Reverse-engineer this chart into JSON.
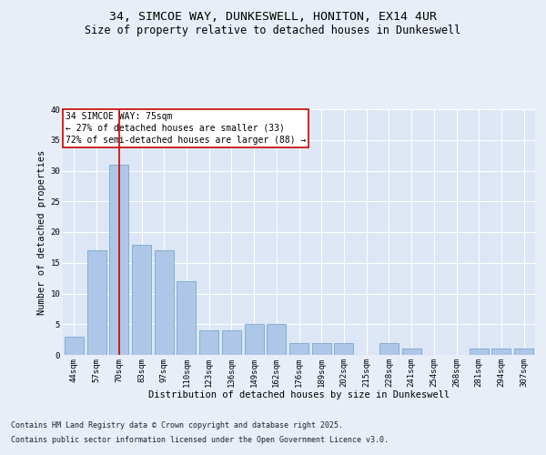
{
  "title_line1": "34, SIMCOE WAY, DUNKESWELL, HONITON, EX14 4UR",
  "title_line2": "Size of property relative to detached houses in Dunkeswell",
  "xlabel": "Distribution of detached houses by size in Dunkeswell",
  "ylabel": "Number of detached properties",
  "categories": [
    "44sqm",
    "57sqm",
    "70sqm",
    "83sqm",
    "97sqm",
    "110sqm",
    "123sqm",
    "136sqm",
    "149sqm",
    "162sqm",
    "176sqm",
    "189sqm",
    "202sqm",
    "215sqm",
    "228sqm",
    "241sqm",
    "254sqm",
    "268sqm",
    "281sqm",
    "294sqm",
    "307sqm"
  ],
  "values": [
    3,
    17,
    31,
    18,
    17,
    12,
    4,
    4,
    5,
    5,
    2,
    2,
    2,
    0,
    2,
    1,
    0,
    0,
    1,
    1,
    1
  ],
  "bar_color": "#aec6e8",
  "bar_edge_color": "#6a9fc8",
  "highlight_bar_index": 2,
  "highlight_line_color": "#cc0000",
  "background_color": "#e8eef8",
  "plot_bg_color": "#dce6f5",
  "ylim": [
    0,
    40
  ],
  "yticks": [
    0,
    5,
    10,
    15,
    20,
    25,
    30,
    35,
    40
  ],
  "annotation_title": "34 SIMCOE WAY: 75sqm",
  "annotation_line1": "← 27% of detached houses are smaller (33)",
  "annotation_line2": "72% of semi-detached houses are larger (88) →",
  "footnote_line1": "Contains HM Land Registry data © Crown copyright and database right 2025.",
  "footnote_line2": "Contains public sector information licensed under the Open Government Licence v3.0.",
  "title_fontsize": 9.5,
  "subtitle_fontsize": 8.5,
  "axis_label_fontsize": 7.5,
  "tick_fontsize": 6.5,
  "annotation_fontsize": 7,
  "footnote_fontsize": 6
}
